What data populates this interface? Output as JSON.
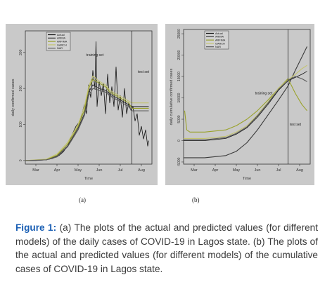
{
  "caption": {
    "lead": "Figure 1:",
    "text": " (a) The plots of the actual and predicted values (for different models) of the daily cases of COVID-19 in Lagos state. (b) The plots of the actual and predicted values (for different models) of the cumulative cases of COVID-19 in Lagos state."
  },
  "panel_labels": [
    "(a)",
    "(b)"
  ],
  "colors": {
    "caption_lead": "#1a5fb4",
    "actual": "#111111",
    "arima": "#3a3a3a",
    "arfima": "#9aa22a",
    "garch": "#c4c470",
    "nar": "#5a5a5a"
  },
  "chart_data": [
    {
      "type": "line",
      "title": "",
      "xlabel": "Time",
      "ylabel": "daily confirmed cases",
      "ylim": [
        -10,
        360
      ],
      "x_ticks": [
        "Mar",
        "Apr",
        "May",
        "Jun",
        "Jul",
        "Aug"
      ],
      "x_tick_pos": [
        0.5,
        1.5,
        2.5,
        3.5,
        4.5,
        5.5
      ],
      "xlim": [
        0,
        6.0
      ],
      "y_ticks": [
        0,
        100,
        200,
        300
      ],
      "annotations": [
        {
          "text": "training set",
          "x": 3.3,
          "y": 290
        },
        {
          "text": "test set",
          "x": 5.6,
          "y": 243
        }
      ],
      "split_x": 5.05,
      "legend": {
        "position": "top-left",
        "entries": [
          "Actual",
          "ARIMA",
          "ARFIMA",
          "GARCH",
          "NAR"
        ]
      },
      "series": [
        {
          "name": "Actual",
          "x": [
            0,
            0.5,
            1.0,
            1.3,
            1.6,
            1.8,
            2.0,
            2.2,
            2.4,
            2.6,
            2.8,
            2.9,
            3.0,
            3.1,
            3.2,
            3.3,
            3.35,
            3.4,
            3.5,
            3.6,
            3.7,
            3.8,
            3.9,
            4.0,
            4.1,
            4.2,
            4.3,
            4.4,
            4.5,
            4.6,
            4.7,
            4.8,
            4.9,
            5.0,
            5.1,
            5.2,
            5.3,
            5.4,
            5.5,
            5.6,
            5.7,
            5.8,
            5.85
          ],
          "y": [
            0,
            0,
            2,
            6,
            14,
            24,
            40,
            70,
            95,
            110,
            155,
            130,
            210,
            175,
            250,
            200,
            330,
            150,
            220,
            180,
            215,
            130,
            240,
            160,
            205,
            150,
            260,
            140,
            180,
            120,
            200,
            130,
            160,
            140,
            150,
            110,
            130,
            70,
            95,
            60,
            85,
            40,
            55
          ]
        },
        {
          "name": "ARIMA",
          "x": [
            0,
            1.0,
            1.5,
            2.0,
            2.5,
            2.8,
            3.0,
            3.2,
            3.5,
            3.8,
            4.0,
            4.3,
            4.6,
            4.9,
            5.05,
            5.85
          ],
          "y": [
            0,
            2,
            12,
            40,
            90,
            130,
            190,
            210,
            200,
            195,
            185,
            175,
            165,
            155,
            150,
            150
          ]
        },
        {
          "name": "ARFIMA",
          "x": [
            0,
            1.0,
            1.5,
            2.0,
            2.5,
            2.8,
            3.0,
            3.2,
            3.5,
            3.8,
            4.0,
            4.3,
            4.6,
            4.9,
            5.05,
            5.85
          ],
          "y": [
            0,
            3,
            15,
            45,
            95,
            140,
            200,
            225,
            215,
            205,
            190,
            180,
            170,
            160,
            145,
            145
          ]
        },
        {
          "name": "GARCH",
          "x": [
            0,
            1.0,
            1.5,
            2.0,
            2.5,
            2.8,
            3.0,
            3.2,
            3.5,
            3.8,
            4.0,
            4.3,
            4.6,
            4.9,
            5.05,
            5.85
          ],
          "y": [
            0,
            4,
            18,
            50,
            100,
            150,
            205,
            235,
            220,
            210,
            195,
            185,
            175,
            165,
            160,
            160
          ]
        },
        {
          "name": "NAR",
          "x": [
            0,
            1.0,
            1.5,
            2.0,
            2.5,
            2.8,
            3.0,
            3.2,
            3.5,
            3.8,
            4.0,
            4.3,
            4.6,
            4.9,
            5.05,
            5.85
          ],
          "y": [
            0,
            2,
            10,
            38,
            85,
            125,
            180,
            200,
            195,
            190,
            180,
            170,
            160,
            150,
            138,
            138
          ]
        }
      ]
    },
    {
      "type": "line",
      "title": "",
      "xlabel": "Time",
      "ylabel": "daily cumulative confirmed cases",
      "ylim": [
        -5500,
        26000
      ],
      "x_ticks": [
        "Mar",
        "Apr",
        "May",
        "Jun",
        "Jul",
        "Aug"
      ],
      "x_tick_pos": [
        0.5,
        1.5,
        2.5,
        3.5,
        4.5,
        5.5
      ],
      "xlim": [
        0,
        6.0
      ],
      "y_ticks": [
        -5000,
        0,
        5000,
        10000,
        15000,
        20000,
        25000
      ],
      "annotations": [
        {
          "text": "training set",
          "x": 3.8,
          "y": 10800
        },
        {
          "text": "test set",
          "x": 5.3,
          "y": 3500
        }
      ],
      "split_x": 4.95,
      "legend": {
        "position": "top-left",
        "entries": [
          "Actual",
          "ARIMA",
          "ARFIMA",
          "GARCH",
          "NAR"
        ]
      },
      "series": [
        {
          "name": "Actual",
          "x": [
            0,
            1.0,
            2.0,
            2.5,
            3.0,
            3.5,
            4.0,
            4.5,
            4.95,
            5.3,
            5.6,
            5.85
          ],
          "y": [
            0,
            0,
            500,
            1500,
            3000,
            5500,
            8500,
            11800,
            14000,
            14800,
            15500,
            16200
          ]
        },
        {
          "name": "ARIMA",
          "x": [
            0,
            1.0,
            2.0,
            2.5,
            3.0,
            3.5,
            4.0,
            4.5,
            4.95,
            5.3,
            5.6,
            5.85
          ],
          "y": [
            -4000,
            -4000,
            -3500,
            -2500,
            -500,
            2500,
            6000,
            9500,
            12800,
            16500,
            19500,
            22000
          ]
        },
        {
          "name": "ARFIMA",
          "x": [
            0.05,
            0.15,
            0.3,
            1.0,
            2.0,
            2.5,
            3.0,
            3.5,
            4.0,
            4.5,
            4.95,
            5.3,
            5.6,
            5.85
          ],
          "y": [
            7000,
            2500,
            2000,
            2000,
            2500,
            3500,
            5000,
            7000,
            9500,
            12200,
            14500,
            11000,
            8500,
            7000
          ]
        },
        {
          "name": "GARCH",
          "x": [
            0,
            1.0,
            2.0,
            2.5,
            3.0,
            3.5,
            4.0,
            4.5,
            4.95,
            5.3,
            5.6,
            5.85
          ],
          "y": [
            500,
            500,
            1000,
            2000,
            3500,
            6000,
            9000,
            12300,
            14200,
            15500,
            16800,
            17600
          ]
        },
        {
          "name": "NAR",
          "x": [
            0,
            1.0,
            2.0,
            2.5,
            3.0,
            3.5,
            4.0,
            4.5,
            4.95,
            5.3,
            5.6,
            5.85
          ],
          "y": [
            200,
            200,
            700,
            1700,
            3200,
            5800,
            8800,
            12000,
            14100,
            15000,
            14500,
            13800
          ]
        }
      ]
    }
  ]
}
